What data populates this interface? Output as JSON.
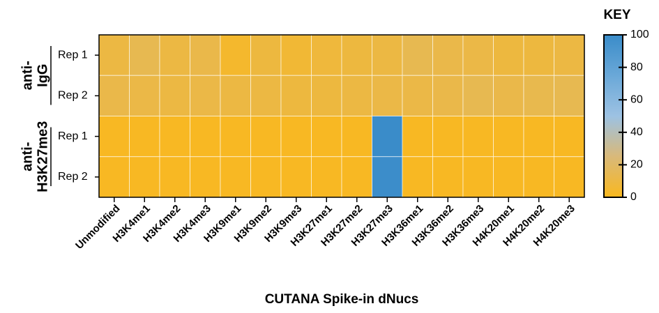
{
  "chart_data": {
    "type": "heatmap",
    "x_label": "CUTANA Spike-in dNucs",
    "categories": [
      "Unmodified",
      "H3K4me1",
      "H3K4me2",
      "H3K4me3",
      "H3K9me1",
      "H3K9me2",
      "H3K9me3",
      "H3K27me1",
      "H3K27me2",
      "H3K27me3",
      "H3K36me1",
      "H3K36me2",
      "H3K36me3",
      "H4K20me1",
      "H4K20me2",
      "H4K20me3"
    ],
    "row_labels": [
      "Rep 1",
      "Rep 2",
      "Rep 1",
      "Rep 2"
    ],
    "groups": [
      {
        "lines": [
          "anti-",
          "IgG"
        ],
        "rows": [
          0,
          1
        ]
      },
      {
        "lines": [
          "anti-",
          "H3K27me3"
        ],
        "rows": [
          2,
          3
        ]
      }
    ],
    "values": [
      [
        10,
        14,
        10,
        12,
        4,
        9,
        6,
        8,
        9,
        10,
        14,
        12,
        11,
        9,
        9,
        10
      ],
      [
        12,
        11,
        10,
        11,
        10,
        10,
        9,
        9,
        10,
        11,
        11,
        12,
        14,
        12,
        13,
        14
      ],
      [
        1,
        1,
        1,
        1,
        1,
        1,
        1,
        1,
        1,
        100,
        1,
        1,
        1,
        1,
        1,
        1
      ],
      [
        1,
        1,
        1,
        1,
        1,
        1,
        1,
        1,
        1,
        99,
        1,
        1,
        1,
        1,
        1,
        1
      ]
    ],
    "colorbar_title": "KEY",
    "clim": [
      0,
      100
    ],
    "cticks": [
      0,
      20,
      40,
      60,
      80,
      100
    ],
    "colors": [
      "#f9b81f",
      "#d9b979",
      "#9dc2e3",
      "#6aa8d8",
      "#3a8cc9"
    ]
  }
}
